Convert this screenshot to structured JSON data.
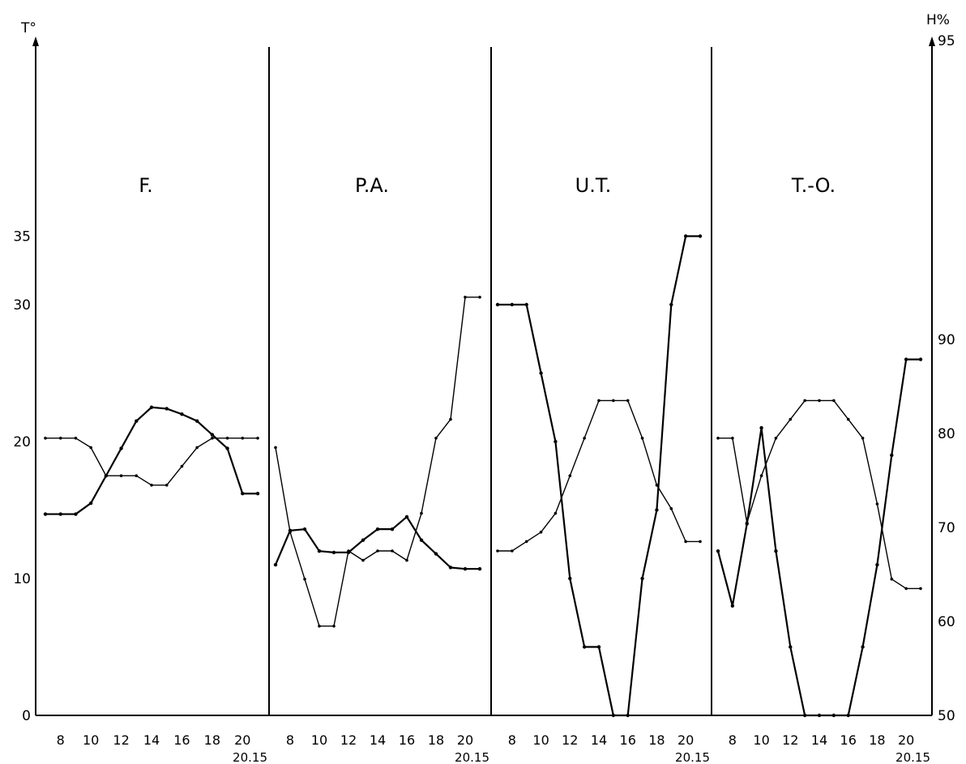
{
  "chart_data": {
    "type": "line",
    "left_axis": {
      "label": "T°",
      "min": 0,
      "max": 40,
      "ticks": [
        0,
        10,
        20,
        30,
        35
      ]
    },
    "right_axis": {
      "label": "H%",
      "min": 50,
      "max": 95,
      "ticks": [
        50,
        60,
        70,
        80,
        90,
        95
      ]
    },
    "x_ticks": [
      "8",
      "10",
      "12",
      "14",
      "16",
      "18",
      "20"
    ],
    "x_end_label": "20.15",
    "panels": [
      {
        "name": "F.",
        "temperature": [
          [
            7,
            14.7
          ],
          [
            8,
            14.7
          ],
          [
            9,
            14.7
          ],
          [
            10,
            15.5
          ],
          [
            11,
            17.5
          ],
          [
            12,
            19.5
          ],
          [
            13,
            21.5
          ],
          [
            14,
            22.5
          ],
          [
            15,
            22.4
          ],
          [
            16,
            22.0
          ],
          [
            17,
            21.5
          ],
          [
            18,
            20.5
          ],
          [
            19,
            19.5
          ],
          [
            20,
            16.2
          ],
          [
            21,
            16.2
          ]
        ],
        "humidity": [
          [
            7,
            79.5
          ],
          [
            8,
            79.5
          ],
          [
            9,
            79.5
          ],
          [
            10,
            78.5
          ],
          [
            11,
            75.5
          ],
          [
            12,
            75.5
          ],
          [
            13,
            75.5
          ],
          [
            14,
            74.5
          ],
          [
            15,
            74.5
          ],
          [
            16,
            76.5
          ],
          [
            17,
            78.5
          ],
          [
            18,
            79.5
          ],
          [
            19,
            79.5
          ],
          [
            20,
            79.5
          ],
          [
            21,
            79.5
          ]
        ]
      },
      {
        "name": "P.A.",
        "temperature": [
          [
            7,
            11
          ],
          [
            8,
            13.5
          ],
          [
            9,
            13.6
          ],
          [
            10,
            12
          ],
          [
            11,
            11.9
          ],
          [
            12,
            11.9
          ],
          [
            13,
            12.8
          ],
          [
            14,
            13.6
          ],
          [
            15,
            13.6
          ],
          [
            16,
            14.5
          ],
          [
            17,
            12.8
          ],
          [
            18,
            11.8
          ],
          [
            19,
            10.8
          ],
          [
            20,
            10.7
          ],
          [
            21,
            10.7
          ]
        ],
        "humidity": [
          [
            7,
            78.5
          ],
          [
            8,
            69.5
          ],
          [
            9,
            64.5
          ],
          [
            10,
            59.5
          ],
          [
            11,
            59.5
          ],
          [
            12,
            67.5
          ],
          [
            13,
            66.5
          ],
          [
            14,
            67.5
          ],
          [
            15,
            67.5
          ],
          [
            16,
            66.5
          ],
          [
            17,
            71.5
          ],
          [
            18,
            79.5
          ],
          [
            19,
            81.5
          ],
          [
            20,
            94.5
          ],
          [
            21,
            94.5
          ]
        ]
      },
      {
        "name": "U.T.",
        "temperature": [
          [
            7,
            30
          ],
          [
            8,
            30
          ],
          [
            9,
            30
          ],
          [
            10,
            25
          ],
          [
            11,
            20
          ],
          [
            12,
            10
          ],
          [
            13,
            5
          ],
          [
            14,
            5
          ],
          [
            15,
            0
          ],
          [
            16,
            0
          ],
          [
            17,
            10
          ],
          [
            18,
            15
          ],
          [
            19,
            30
          ],
          [
            20,
            35
          ],
          [
            21,
            35
          ]
        ],
        "humidity": [
          [
            7,
            67.5
          ],
          [
            8,
            67.5
          ],
          [
            9,
            68.5
          ],
          [
            10,
            69.5
          ],
          [
            11,
            71.5
          ],
          [
            12,
            75.5
          ],
          [
            13,
            79.5
          ],
          [
            14,
            83.5
          ],
          [
            15,
            83.5
          ],
          [
            16,
            83.5
          ],
          [
            17,
            79.5
          ],
          [
            18,
            74.5
          ],
          [
            19,
            72
          ],
          [
            20,
            68.5
          ],
          [
            21,
            68.5
          ]
        ]
      },
      {
        "name": "T.-O.",
        "temperature": [
          [
            7,
            12
          ],
          [
            8,
            8
          ],
          [
            9,
            14
          ],
          [
            10,
            21
          ],
          [
            11,
            12
          ],
          [
            12,
            5
          ],
          [
            13,
            0
          ],
          [
            14,
            0
          ],
          [
            15,
            0
          ],
          [
            16,
            0
          ],
          [
            17,
            5
          ],
          [
            18,
            11
          ],
          [
            19,
            19
          ],
          [
            20,
            26
          ],
          [
            21,
            26
          ]
        ],
        "humidity": [
          [
            7,
            79.5
          ],
          [
            8,
            79.5
          ],
          [
            9,
            70.5
          ],
          [
            10,
            75.5
          ],
          [
            11,
            79.5
          ],
          [
            12,
            81.5
          ],
          [
            13,
            83.5
          ],
          [
            14,
            83.5
          ],
          [
            15,
            83.5
          ],
          [
            16,
            81.5
          ],
          [
            17,
            79.5
          ],
          [
            18,
            72.5
          ],
          [
            19,
            64.5
          ],
          [
            20,
            63.5
          ],
          [
            21,
            63.5
          ]
        ]
      }
    ],
    "grid": false,
    "legend": "none"
  }
}
